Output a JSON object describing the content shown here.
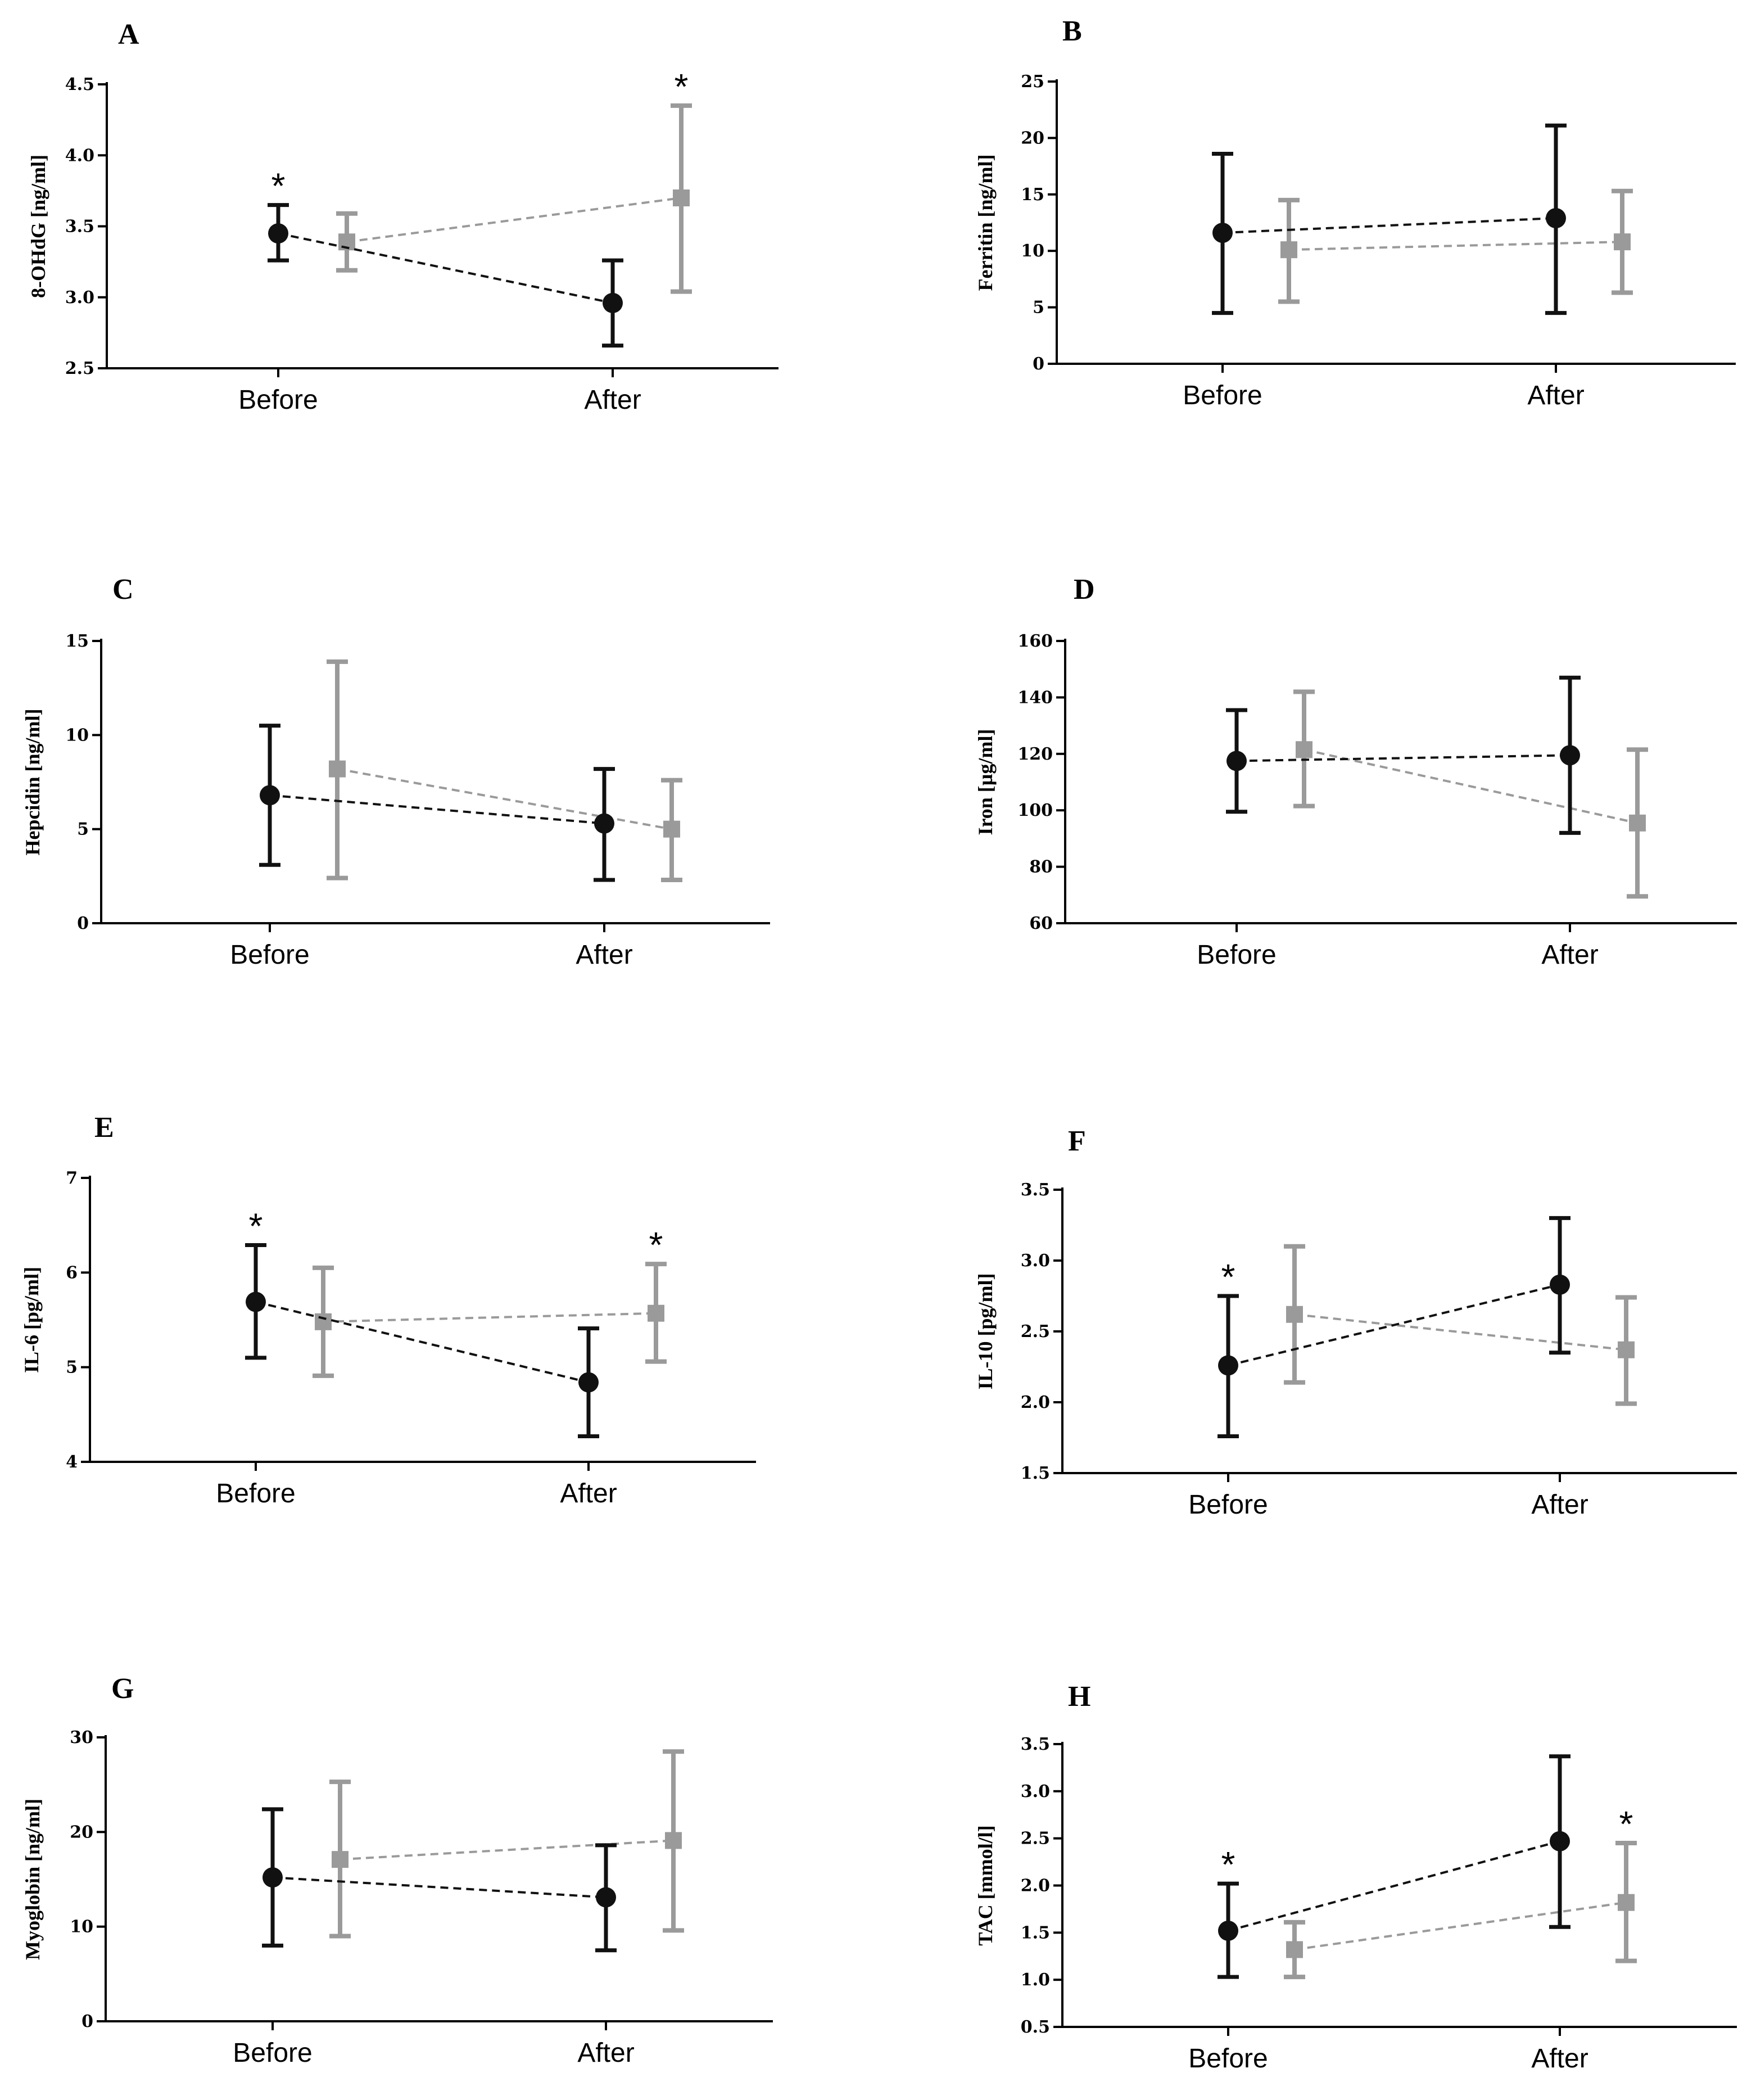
{
  "chart_data": [
    {
      "type": "line",
      "panel": "A",
      "ylabel": "8-OHdG [ng/ml]",
      "ylim": [
        2.5,
        4.5
      ],
      "yticks": [
        "2.5",
        "3.0",
        "3.5",
        "4.0",
        "4.5"
      ],
      "categories": [
        "Before",
        "After"
      ],
      "series": [
        {
          "name": "black",
          "color": "#111111",
          "marker": "circle",
          "values": [
            3.45,
            2.96
          ],
          "lower": [
            3.26,
            2.66
          ],
          "upper": [
            3.65,
            3.26
          ],
          "stars": [
            true,
            false
          ]
        },
        {
          "name": "gray",
          "color": "#9a9a9a",
          "marker": "square",
          "values": [
            3.39,
            3.7
          ],
          "lower": [
            3.19,
            3.04
          ],
          "upper": [
            3.59,
            4.35
          ],
          "stars": [
            false,
            true
          ]
        }
      ]
    },
    {
      "type": "line",
      "panel": "B",
      "ylabel": "Ferritin [ng/ml]",
      "ylim": [
        0,
        25
      ],
      "yticks": [
        "0",
        "5",
        "10",
        "15",
        "20",
        "25"
      ],
      "categories": [
        "Before",
        "After"
      ],
      "series": [
        {
          "name": "black",
          "color": "#111111",
          "marker": "circle",
          "values": [
            11.6,
            12.9
          ],
          "lower": [
            4.5,
            4.5
          ],
          "upper": [
            18.6,
            21.1
          ],
          "stars": [
            false,
            false
          ]
        },
        {
          "name": "gray",
          "color": "#9a9a9a",
          "marker": "square",
          "values": [
            10.1,
            10.8
          ],
          "lower": [
            5.5,
            6.3
          ],
          "upper": [
            14.5,
            15.3
          ],
          "stars": [
            false,
            false
          ]
        }
      ]
    },
    {
      "type": "line",
      "panel": "C",
      "ylabel": "Hepcidin [ng/ml]",
      "ylim": [
        0,
        15
      ],
      "yticks": [
        "0",
        "5",
        "10",
        "15"
      ],
      "categories": [
        "Before",
        "After"
      ],
      "series": [
        {
          "name": "black",
          "color": "#111111",
          "marker": "circle",
          "values": [
            6.8,
            5.3
          ],
          "lower": [
            3.1,
            2.3
          ],
          "upper": [
            10.5,
            8.2
          ],
          "stars": [
            false,
            false
          ]
        },
        {
          "name": "gray",
          "color": "#9a9a9a",
          "marker": "square",
          "values": [
            8.2,
            5.0
          ],
          "lower": [
            2.4,
            2.3
          ],
          "upper": [
            13.9,
            7.6
          ],
          "stars": [
            false,
            false
          ]
        }
      ]
    },
    {
      "type": "line",
      "panel": "D",
      "ylabel": "Iron [µg/ml]",
      "ylim": [
        60,
        160
      ],
      "yticks": [
        "60",
        "80",
        "100",
        "120",
        "140",
        "160"
      ],
      "categories": [
        "Before",
        "After"
      ],
      "series": [
        {
          "name": "black",
          "color": "#111111",
          "marker": "circle",
          "values": [
            117.5,
            119.5
          ],
          "lower": [
            99.5,
            92.0
          ],
          "upper": [
            135.5,
            147.0
          ],
          "stars": [
            false,
            false
          ]
        },
        {
          "name": "gray",
          "color": "#9a9a9a",
          "marker": "square",
          "values": [
            121.5,
            95.5
          ],
          "lower": [
            101.5,
            69.5
          ],
          "upper": [
            142.0,
            121.5
          ],
          "stars": [
            false,
            false
          ]
        }
      ]
    },
    {
      "type": "line",
      "panel": "E",
      "ylabel": "IL-6 [pg/ml]",
      "ylim": [
        4,
        7
      ],
      "yticks": [
        "4",
        "5",
        "6",
        "7"
      ],
      "categories": [
        "Before",
        "After"
      ],
      "series": [
        {
          "name": "black",
          "color": "#111111",
          "marker": "circle",
          "values": [
            5.69,
            4.84
          ],
          "lower": [
            5.1,
            4.27
          ],
          "upper": [
            6.29,
            5.41
          ],
          "stars": [
            true,
            false
          ]
        },
        {
          "name": "gray",
          "color": "#9a9a9a",
          "marker": "square",
          "values": [
            5.48,
            5.57
          ],
          "lower": [
            4.91,
            5.06
          ],
          "upper": [
            6.05,
            6.09
          ],
          "stars": [
            false,
            true
          ]
        }
      ]
    },
    {
      "type": "line",
      "panel": "F",
      "ylabel": "IL-10 [pg/ml]",
      "ylim": [
        1.5,
        3.5
      ],
      "yticks": [
        "1.5",
        "2.0",
        "2.5",
        "3.0",
        "3.5"
      ],
      "categories": [
        "Before",
        "After"
      ],
      "series": [
        {
          "name": "black",
          "color": "#111111",
          "marker": "circle",
          "values": [
            2.26,
            2.83
          ],
          "lower": [
            1.76,
            2.35
          ],
          "upper": [
            2.75,
            3.3
          ],
          "stars": [
            true,
            false
          ]
        },
        {
          "name": "gray",
          "color": "#9a9a9a",
          "marker": "square",
          "values": [
            2.62,
            2.37
          ],
          "lower": [
            2.14,
            1.99
          ],
          "upper": [
            3.1,
            2.74
          ],
          "stars": [
            false,
            false
          ]
        }
      ]
    },
    {
      "type": "line",
      "panel": "G",
      "ylabel": "Myoglobin [ng/ml]",
      "ylim": [
        0,
        30
      ],
      "yticks": [
        "0",
        "10",
        "20",
        "30"
      ],
      "categories": [
        "Before",
        "After"
      ],
      "series": [
        {
          "name": "black",
          "color": "#111111",
          "marker": "circle",
          "values": [
            15.2,
            13.1
          ],
          "lower": [
            8.0,
            7.5
          ],
          "upper": [
            22.4,
            18.6
          ],
          "stars": [
            false,
            false
          ]
        },
        {
          "name": "gray",
          "color": "#9a9a9a",
          "marker": "square",
          "values": [
            17.1,
            19.1
          ],
          "lower": [
            9.0,
            9.6
          ],
          "upper": [
            25.3,
            28.5
          ],
          "stars": [
            false,
            false
          ]
        }
      ]
    },
    {
      "type": "line",
      "panel": "H",
      "ylabel": "TAC [mmol/l]",
      "ylim": [
        0.5,
        3.5
      ],
      "yticks": [
        "0.5",
        "1.0",
        "1.5",
        "2.0",
        "2.5",
        "3.0",
        "3.5"
      ],
      "categories": [
        "Before",
        "After"
      ],
      "series": [
        {
          "name": "black",
          "color": "#111111",
          "marker": "circle",
          "values": [
            1.52,
            2.47
          ],
          "lower": [
            1.03,
            1.56
          ],
          "upper": [
            2.02,
            3.37
          ],
          "stars": [
            true,
            false
          ]
        },
        {
          "name": "gray",
          "color": "#9a9a9a",
          "marker": "square",
          "values": [
            1.32,
            1.82
          ],
          "lower": [
            1.03,
            1.2
          ],
          "upper": [
            1.61,
            2.45
          ],
          "stars": [
            false,
            true
          ]
        }
      ]
    }
  ],
  "star_symbol": "*"
}
